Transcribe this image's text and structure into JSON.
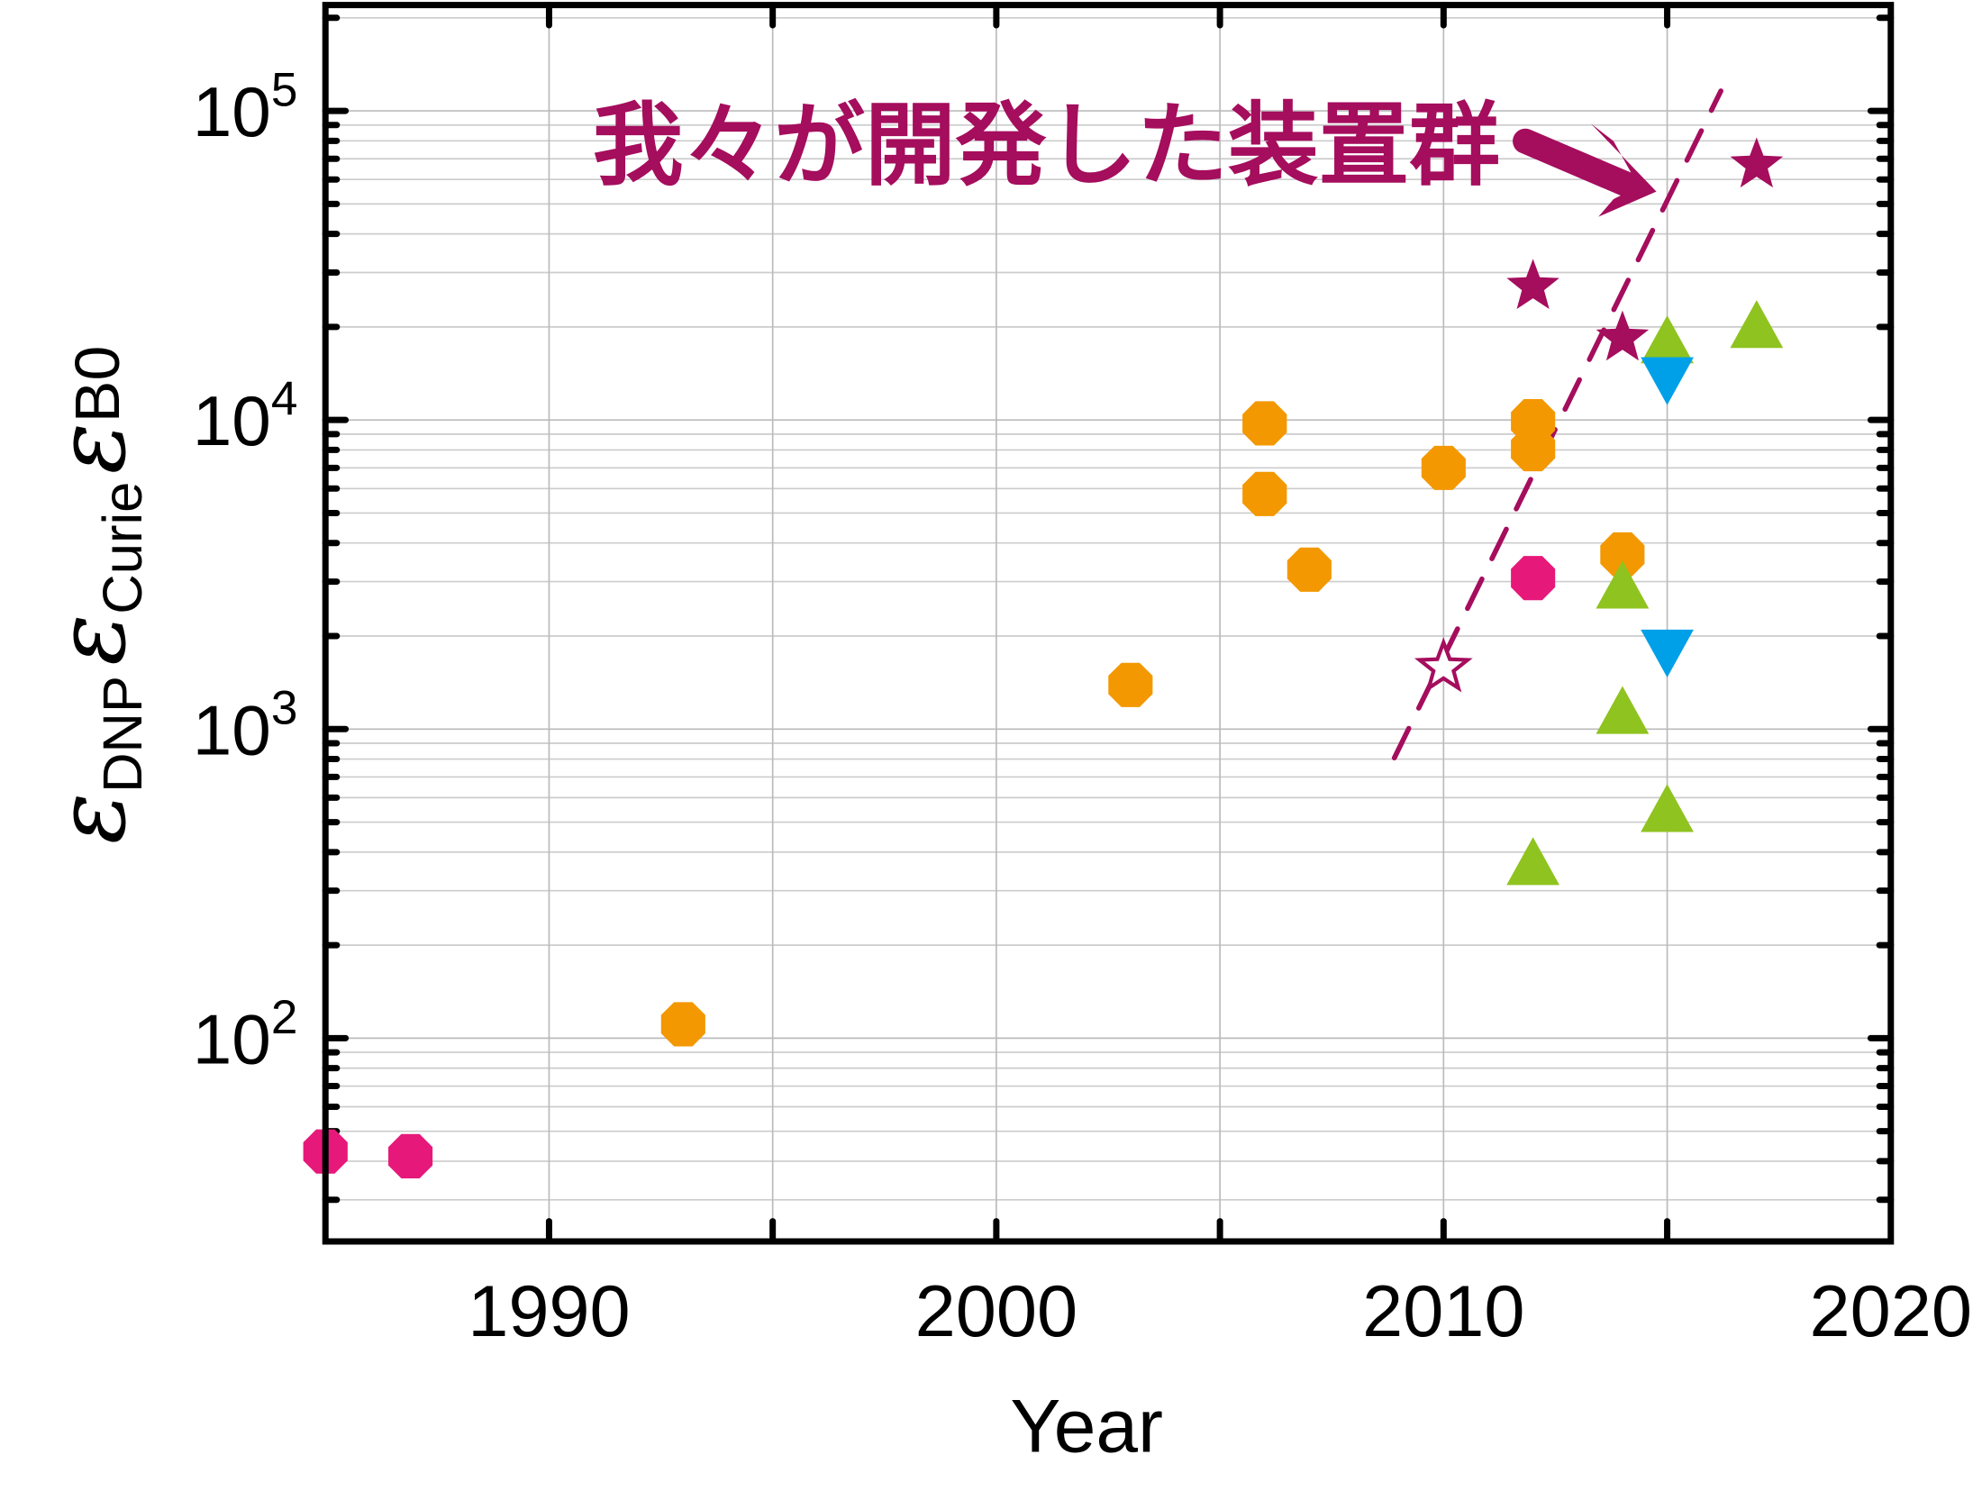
{
  "chart_data": {
    "type": "scatter",
    "title": "",
    "xlabel": "Year",
    "ylabel": {
      "eps1": "ε",
      "sub1": "DNP",
      "eps2": "ε",
      "sub2": "Curie",
      "eps3": "ε",
      "sub3": "B0"
    },
    "xlim": [
      1985,
      2020
    ],
    "ylim": [
      22,
      220000
    ],
    "yscale": "log",
    "grid": true,
    "xticks": [
      "1990",
      "2000",
      "2010",
      "2020"
    ],
    "xtick_values": [
      1990,
      2000,
      2010,
      2020
    ],
    "yticks": [
      {
        "base": "10",
        "exp": "2",
        "value": 100
      },
      {
        "base": "10",
        "exp": "3",
        "value": 1000
      },
      {
        "base": "10",
        "exp": "4",
        "value": 10000
      },
      {
        "base": "10",
        "exp": "5",
        "value": 100000
      }
    ],
    "annotation": {
      "text": "我々が開発した装置群",
      "color": "#a50d5d"
    },
    "series": [
      {
        "name": "magenta-circles",
        "marker": "octagon",
        "color": "#e6197a",
        "points": [
          [
            1985,
            43
          ],
          [
            1986.9,
            41.5
          ],
          [
            2012,
            3080
          ]
        ]
      },
      {
        "name": "orange-circles",
        "marker": "octagon",
        "color": "#f39800",
        "points": [
          [
            1993,
            111
          ],
          [
            2003,
            1390
          ],
          [
            2006,
            9750
          ],
          [
            2006,
            5760
          ],
          [
            2007,
            3280
          ],
          [
            2010,
            7000
          ],
          [
            2012,
            9900
          ],
          [
            2012,
            8050
          ],
          [
            2014,
            3670
          ]
        ]
      },
      {
        "name": "our-devices-stars",
        "marker": "star",
        "color": "#a50d5d",
        "points": [
          [
            2012,
            27000
          ],
          [
            2014,
            18400
          ],
          [
            2017,
            66800
          ]
        ]
      },
      {
        "name": "our-devices-open-star",
        "marker": "star-open",
        "color": "#a50d5d",
        "points": [
          [
            2010,
            1580
          ]
        ]
      },
      {
        "name": "green-triangles",
        "marker": "triangle-up",
        "color": "#8fc31f",
        "points": [
          [
            2012,
            357
          ],
          [
            2014,
            2800
          ],
          [
            2014,
            1100
          ],
          [
            2015,
            17400
          ],
          [
            2015,
            530
          ],
          [
            2017,
            19500
          ]
        ]
      },
      {
        "name": "blue-triangles",
        "marker": "triangle-down",
        "color": "#00a0e9",
        "points": [
          [
            2015,
            14000
          ],
          [
            2015,
            1840
          ]
        ]
      }
    ],
    "trend_line": {
      "style": "dashed",
      "color": "#a50d5d",
      "from": [
        2008.9,
        807
      ],
      "to": [
        2016.2,
        116000
      ]
    }
  }
}
